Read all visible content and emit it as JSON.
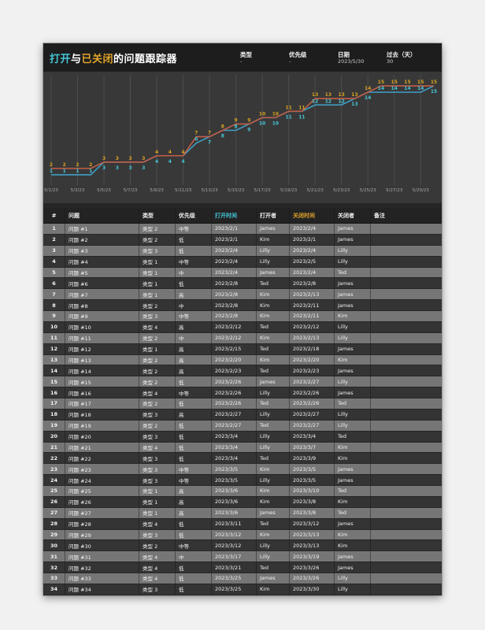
{
  "header": {
    "title_open": "打开",
    "title_and": "与",
    "title_closed": "已关闭",
    "title_rest": "的问题跟踪器",
    "filters": [
      {
        "label": "类型",
        "value": "-"
      },
      {
        "label": "优先级",
        "value": "-"
      },
      {
        "label": "日期",
        "value": "2023/5/30"
      },
      {
        "label": "过去（天）",
        "value": "30"
      }
    ]
  },
  "chart_data": {
    "type": "line",
    "title": "",
    "xlabel": "",
    "ylabel": "",
    "ylim": [
      0,
      16
    ],
    "grid": "vertical",
    "legend_position": "none",
    "x": [
      "5/1/23",
      "5/2/23",
      "5/3/23",
      "5/4/23",
      "5/5/23",
      "5/6/23",
      "5/7/23",
      "5/8/23",
      "5/9/23",
      "5/10/23",
      "5/11/23",
      "5/12/23",
      "5/13/23",
      "5/14/23",
      "5/15/23",
      "5/16/23",
      "5/17/23",
      "5/18/23",
      "5/19/23",
      "5/20/23",
      "5/21/23",
      "5/22/23",
      "5/23/23",
      "5/24/23",
      "5/25/23",
      "5/26/23",
      "5/27/23",
      "5/28/23",
      "5/29/23",
      "5/30/23"
    ],
    "tick_labels": [
      "5/1/23",
      "5/3/23",
      "5/5/23",
      "5/7/23",
      "5/9/23",
      "5/11/23",
      "5/13/23",
      "5/15/23",
      "5/17/23",
      "5/19/23",
      "5/21/23",
      "5/23/23",
      "5/25/23",
      "5/27/23",
      "5/29/23"
    ],
    "series": [
      {
        "name": "打开",
        "color": "#c05f48",
        "label_color": "#d7a021",
        "values": [
          2,
          2,
          2,
          2,
          3,
          3,
          3,
          3,
          4,
          4,
          4,
          7,
          7,
          8,
          9,
          9,
          10,
          10,
          11,
          11,
          13,
          13,
          13,
          13,
          14,
          15,
          15,
          15,
          15,
          15
        ]
      },
      {
        "name": "已关闭",
        "color": "#3f9fc6",
        "label_color": "#45c6d8",
        "values": [
          1,
          1,
          1,
          1,
          3,
          3,
          3,
          3,
          4,
          4,
          4,
          6,
          7,
          8,
          8,
          9,
          10,
          10,
          11,
          11,
          12,
          12,
          12,
          13,
          14,
          14,
          14,
          14,
          14,
          15
        ]
      }
    ]
  },
  "table": {
    "columns": [
      "#",
      "问题",
      "类型",
      "优先级",
      "打开时间",
      "打开者",
      "关闭时间",
      "关闭者",
      "备注"
    ],
    "rows": [
      [
        "1",
        "问题 #1",
        "类型 2",
        "中等",
        "2023/2/1",
        "James",
        "2023/2/4",
        "James",
        ""
      ],
      [
        "2",
        "问题 #2",
        "类型 2",
        "低",
        "2023/2/1",
        "Kim",
        "2023/2/1",
        "James",
        ""
      ],
      [
        "3",
        "问题 #3",
        "类型 3",
        "低",
        "2023/2/4",
        "Lilly",
        "2023/2/4",
        "Lilly",
        ""
      ],
      [
        "4",
        "问题 #4",
        "类型 1",
        "中等",
        "2023/2/4",
        "Lilly",
        "2023/2/5",
        "Lilly",
        ""
      ],
      [
        "5",
        "问题 #5",
        "类型 1",
        "中",
        "2023/2/4",
        "James",
        "2023/2/4",
        "Ted",
        ""
      ],
      [
        "6",
        "问题 #6",
        "类型 1",
        "低",
        "2023/2/8",
        "Ted",
        "2023/2/8",
        "James",
        ""
      ],
      [
        "7",
        "问题 #7",
        "类型 1",
        "高",
        "2023/2/8",
        "Kim",
        "2023/2/13",
        "James",
        ""
      ],
      [
        "8",
        "问题 #8",
        "类型 2",
        "中",
        "2023/2/8",
        "Kim",
        "2023/2/11",
        "James",
        ""
      ],
      [
        "9",
        "问题 #9",
        "类型 3",
        "中等",
        "2023/2/8",
        "Kim",
        "2023/2/11",
        "Kim",
        ""
      ],
      [
        "10",
        "问题 #10",
        "类型 4",
        "高",
        "2023/2/12",
        "Ted",
        "2023/2/12",
        "Lilly",
        ""
      ],
      [
        "11",
        "问题 #11",
        "类型 2",
        "中",
        "2023/2/12",
        "Kim",
        "2023/2/13",
        "Lilly",
        ""
      ],
      [
        "12",
        "问题 #12",
        "类型 1",
        "高",
        "2023/2/15",
        "Ted",
        "2023/2/18",
        "James",
        ""
      ],
      [
        "13",
        "问题 #13",
        "类型 2",
        "高",
        "2023/2/20",
        "Kim",
        "2023/2/20",
        "Kim",
        ""
      ],
      [
        "14",
        "问题 #14",
        "类型 2",
        "高",
        "2023/2/23",
        "Ted",
        "2023/2/23",
        "James",
        ""
      ],
      [
        "15",
        "问题 #15",
        "类型 2",
        "低",
        "2023/2/26",
        "James",
        "2023/2/27",
        "Lilly",
        ""
      ],
      [
        "16",
        "问题 #16",
        "类型 4",
        "中等",
        "2023/2/26",
        "Lilly",
        "2023/2/26",
        "James",
        ""
      ],
      [
        "17",
        "问题 #17",
        "类型 2",
        "低",
        "2023/2/26",
        "Ted",
        "2023/2/26",
        "Ted",
        ""
      ],
      [
        "18",
        "问题 #18",
        "类型 3",
        "高",
        "2023/2/27",
        "Lilly",
        "2023/2/27",
        "Lilly",
        ""
      ],
      [
        "19",
        "问题 #19",
        "类型 2",
        "低",
        "2023/2/27",
        "Ted",
        "2023/2/27",
        "Lilly",
        ""
      ],
      [
        "20",
        "问题 #20",
        "类型 3",
        "低",
        "2023/3/4",
        "Lilly",
        "2023/3/4",
        "Ted",
        ""
      ],
      [
        "21",
        "问题 #21",
        "类型 4",
        "低",
        "2023/3/4",
        "Lilly",
        "2023/3/7",
        "Kim",
        ""
      ],
      [
        "22",
        "问题 #22",
        "类型 3",
        "低",
        "2023/3/4",
        "Ted",
        "2023/3/9",
        "Kim",
        ""
      ],
      [
        "23",
        "问题 #23",
        "类型 3",
        "中等",
        "2023/3/5",
        "Kim",
        "2023/3/5",
        "James",
        ""
      ],
      [
        "24",
        "问题 #24",
        "类型 3",
        "中等",
        "2023/3/5",
        "Lilly",
        "2023/3/5",
        "James",
        ""
      ],
      [
        "25",
        "问题 #25",
        "类型 1",
        "高",
        "2023/3/6",
        "Kim",
        "2023/3/10",
        "Ted",
        ""
      ],
      [
        "26",
        "问题 #26",
        "类型 1",
        "高",
        "2023/3/6",
        "Kim",
        "2023/3/8",
        "Kim",
        ""
      ],
      [
        "27",
        "问题 #27",
        "类型 1",
        "高",
        "2023/3/6",
        "James",
        "2023/3/8",
        "Ted",
        ""
      ],
      [
        "28",
        "问题 #28",
        "类型 4",
        "低",
        "2023/3/11",
        "Ted",
        "2023/3/12",
        "James",
        ""
      ],
      [
        "29",
        "问题 #29",
        "类型 3",
        "低",
        "2023/3/12",
        "Kim",
        "2023/3/13",
        "Kim",
        ""
      ],
      [
        "30",
        "问题 #30",
        "类型 2",
        "中等",
        "2023/3/12",
        "Lilly",
        "2023/3/13",
        "Kim",
        ""
      ],
      [
        "31",
        "问题 #31",
        "类型 4",
        "中",
        "2023/3/17",
        "Lilly",
        "2023/3/19",
        "James",
        ""
      ],
      [
        "32",
        "问题 #32",
        "类型 4",
        "低",
        "2023/3/21",
        "Ted",
        "2023/3/26",
        "James",
        ""
      ],
      [
        "33",
        "问题 #33",
        "类型 4",
        "低",
        "2023/3/25",
        "James",
        "2023/3/26",
        "Lilly",
        ""
      ],
      [
        "34",
        "问题 #34",
        "类型 3",
        "低",
        "2023/3/25",
        "Kim",
        "2023/3/30",
        "Lilly",
        ""
      ]
    ]
  },
  "colors": {
    "accent_open": "#45c6d8",
    "accent_closed": "#e0a42b",
    "chart_bg": "#383838",
    "gridline": "#4d4d4d",
    "row_odd": "#767676",
    "row_even": "#343434",
    "axis_text": "#a8a8a8"
  }
}
